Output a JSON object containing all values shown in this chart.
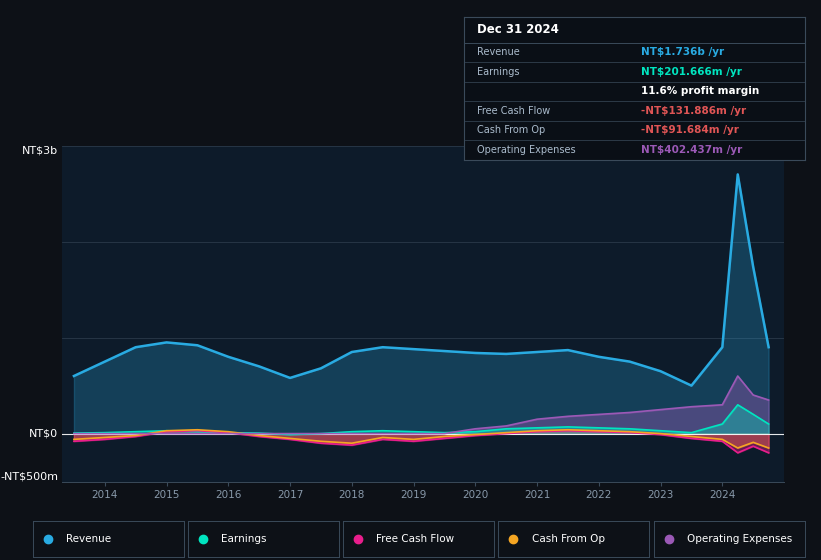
{
  "background_color": "#0d1117",
  "plot_bg_color": "#0d1b2a",
  "ylabel_top": "NT$3b",
  "ylabel_zero": "NT$0",
  "ylabel_bottom": "-NT$500m",
  "y_max": 3000,
  "y_min": -500,
  "colors": {
    "revenue": "#29abe2",
    "earnings": "#00e5c0",
    "free_cash_flow": "#e91e8c",
    "cash_from_op": "#f5a623",
    "operating_expenses": "#9b59b6"
  },
  "legend_items": [
    "Revenue",
    "Earnings",
    "Free Cash Flow",
    "Cash From Op",
    "Operating Expenses"
  ],
  "legend_colors": [
    "#29abe2",
    "#00e5c0",
    "#e91e8c",
    "#f5a623",
    "#9b59b6"
  ],
  "years": [
    2013.5,
    2014.0,
    2014.5,
    2015.0,
    2015.5,
    2016.0,
    2016.5,
    2017.0,
    2017.5,
    2018.0,
    2018.5,
    2019.0,
    2019.5,
    2020.0,
    2020.5,
    2021.0,
    2021.5,
    2022.0,
    2022.5,
    2023.0,
    2023.5,
    2024.0,
    2024.25,
    2024.5,
    2024.75
  ],
  "revenue": [
    600,
    750,
    900,
    950,
    920,
    800,
    700,
    580,
    680,
    850,
    900,
    880,
    860,
    840,
    830,
    850,
    870,
    800,
    750,
    650,
    500,
    900,
    2700,
    1736,
    900
  ],
  "earnings": [
    5,
    10,
    20,
    30,
    20,
    10,
    5,
    -10,
    0,
    20,
    30,
    20,
    10,
    20,
    50,
    60,
    70,
    60,
    50,
    30,
    10,
    100,
    300,
    201,
    100
  ],
  "free_cash_flow": [
    -80,
    -60,
    -30,
    20,
    30,
    10,
    -30,
    -60,
    -100,
    -120,
    -60,
    -80,
    -50,
    -20,
    0,
    20,
    30,
    20,
    10,
    -10,
    -50,
    -80,
    -200,
    -131,
    -200
  ],
  "cash_from_op": [
    -60,
    -40,
    -20,
    30,
    40,
    20,
    -20,
    -50,
    -80,
    -100,
    -40,
    -60,
    -30,
    -10,
    10,
    30,
    40,
    30,
    20,
    0,
    -30,
    -60,
    -150,
    -91,
    -150
  ],
  "operating_expenses": [
    0,
    0,
    0,
    0,
    0,
    0,
    0,
    0,
    0,
    0,
    0,
    0,
    0,
    50,
    80,
    150,
    180,
    200,
    220,
    250,
    280,
    300,
    600,
    402,
    350
  ],
  "tooltip": {
    "date": "Dec 31 2024",
    "rows": [
      {
        "label": "Revenue",
        "value": "NT$1.736b /yr",
        "value_color": "#29abe2"
      },
      {
        "label": "Earnings",
        "value": "NT$201.666m /yr",
        "value_color": "#00e5c0"
      },
      {
        "label": "",
        "value": "11.6% profit margin",
        "value_color": "#ffffff"
      },
      {
        "label": "Free Cash Flow",
        "value": "-NT$131.886m /yr",
        "value_color": "#e05555"
      },
      {
        "label": "Cash From Op",
        "value": "-NT$91.684m /yr",
        "value_color": "#e05555"
      },
      {
        "label": "Operating Expenses",
        "value": "NT$402.437m /yr",
        "value_color": "#9b59b6"
      }
    ]
  },
  "x_min": 2013.3,
  "x_max": 2025.0,
  "xticks": [
    2014,
    2015,
    2016,
    2017,
    2018,
    2019,
    2020,
    2021,
    2022,
    2023,
    2024
  ]
}
